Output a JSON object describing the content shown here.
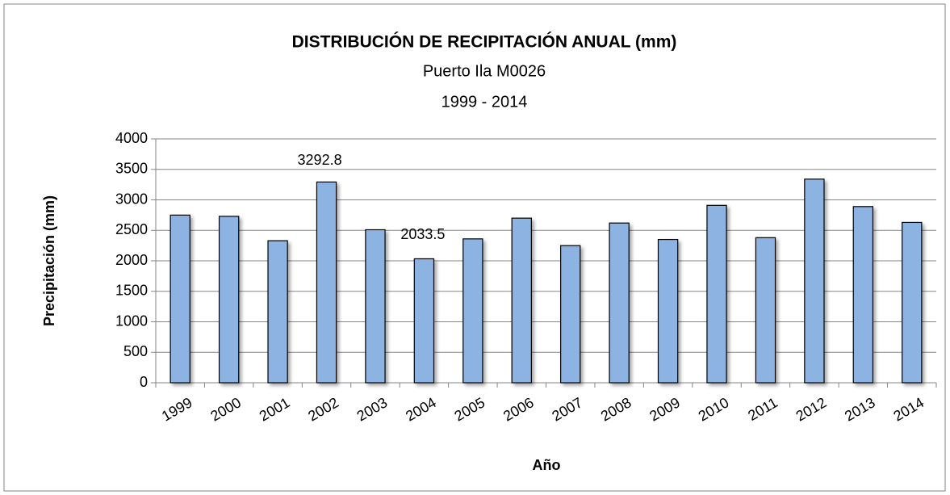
{
  "chart_data": {
    "type": "bar",
    "title": "DISTRIBUCIÓN DE RECIPITACIÓN ANUAL (mm)",
    "subtitle": [
      "Puerto Ila M0026",
      "1999 - 2014"
    ],
    "x_label": "Año",
    "y_label": "Precipitación (mm)",
    "categories": [
      "1999",
      "2000",
      "2001",
      "2002",
      "2003",
      "2004",
      "2005",
      "2006",
      "2007",
      "2008",
      "2009",
      "2010",
      "2011",
      "2012",
      "2013",
      "2014"
    ],
    "values": [
      2750,
      2730,
      2330,
      3292.8,
      2510,
      2033.5,
      2360,
      2700,
      2250,
      2620,
      2350,
      2910,
      2380,
      3340,
      2890,
      2630
    ],
    "value_labels": [
      null,
      null,
      null,
      "3292.8",
      null,
      "2033.5",
      null,
      null,
      null,
      null,
      null,
      null,
      null,
      null,
      null,
      null
    ],
    "color": "#8db3e2",
    "ylim": [
      0,
      4000
    ],
    "yticks": [
      0,
      500,
      1000,
      1500,
      2000,
      2500,
      3000,
      3500,
      4000
    ],
    "grid": true
  }
}
